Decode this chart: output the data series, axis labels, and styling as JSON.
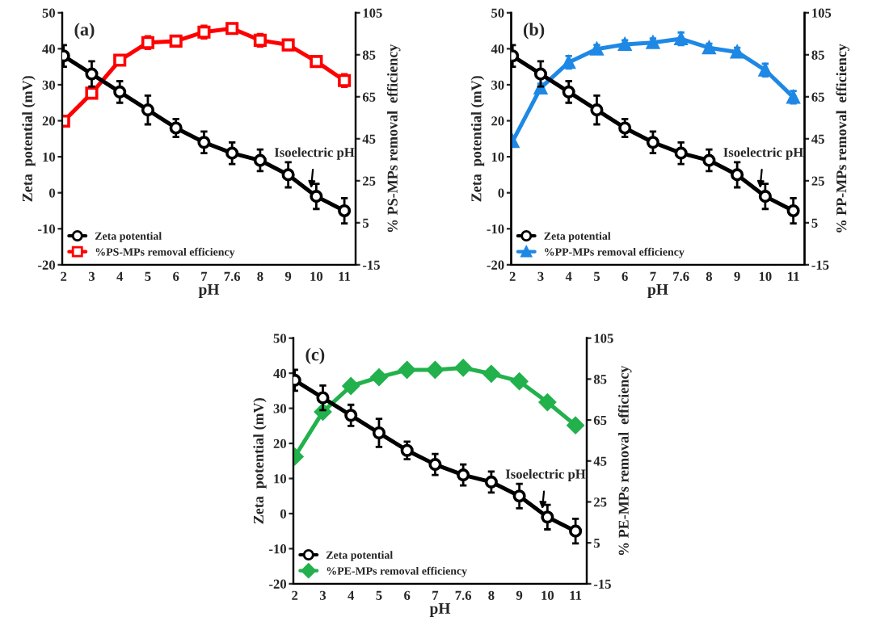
{
  "chart_data": [
    {
      "type": "line",
      "categories": [
        "2",
        "3",
        "4",
        "5",
        "6",
        "7",
        "7.6",
        "8",
        "9",
        "10",
        "11"
      ],
      "xlabel": "pH",
      "ylabel": "Zeta  potential (mV)",
      "y2label": "% PS-MPs removal  efficiency",
      "ylim": [
        -20,
        50
      ],
      "yticks": [
        -20,
        -10,
        0,
        10,
        20,
        30,
        40,
        50
      ],
      "y2lim": [
        -15,
        105
      ],
      "y2ticks": [
        -15,
        5,
        25,
        45,
        65,
        85,
        105
      ],
      "legend": "bottom left",
      "grid": false,
      "annotations": [
        "(a)",
        {
          "text": "Isoelectric pH",
          "x": "10",
          "y": 0
        }
      ],
      "series": [
        {
          "name": "Zeta potential",
          "color": "#000000",
          "marker": "circle",
          "values": [
            38,
            33,
            28,
            23,
            18,
            14,
            11,
            9,
            5,
            -1,
            -5
          ],
          "errors": [
            3,
            3.5,
            3,
            4,
            2.5,
            3,
            3,
            3,
            3.5,
            3.5,
            3.5
          ]
        },
        {
          "name": "%PS-MPs removal efficiency",
          "color": "#ff0000",
          "marker": "square",
          "axis": "y2",
          "values": [
            53.4,
            66.7,
            82.4,
            90.8,
            91.5,
            95.8,
            97.5,
            91.9,
            89.7,
            81.8,
            72.7
          ],
          "errors": [
            2,
            2,
            2,
            3,
            2,
            3,
            2,
            3,
            2,
            2,
            3
          ]
        }
      ]
    },
    {
      "type": "line",
      "categories": [
        "2",
        "3",
        "4",
        "5",
        "6",
        "7",
        "7.6",
        "8",
        "9",
        "10",
        "11"
      ],
      "xlabel": "pH",
      "ylabel": "Zeta  potential (mV)",
      "y2label": "% PP-MPs removal  efficiency",
      "ylim": [
        -20,
        50
      ],
      "yticks": [
        -20,
        -10,
        0,
        10,
        20,
        30,
        40,
        50
      ],
      "y2lim": [
        -15,
        105
      ],
      "y2ticks": [
        -15,
        5,
        25,
        45,
        65,
        85,
        105
      ],
      "legend": "bottom left",
      "grid": false,
      "annotations": [
        "(b)",
        {
          "text": "Isoelectric pH",
          "x": "10",
          "y": 0
        }
      ],
      "series": [
        {
          "name": "Zeta potential",
          "color": "#000000",
          "marker": "circle",
          "values": [
            38,
            33,
            28,
            23,
            18,
            14,
            11,
            9,
            5,
            -1,
            -5
          ],
          "errors": [
            3,
            3.5,
            3,
            4,
            2.5,
            3,
            3,
            3,
            3.5,
            3.5,
            3.5
          ]
        },
        {
          "name": "%PP-MPs removal efficiency",
          "color": "#1e88e5",
          "marker": "triangle",
          "axis": "y2",
          "values": [
            43.7,
            69.2,
            81.4,
            87.7,
            89.9,
            90.8,
            92.6,
            88.3,
            86.3,
            77.7,
            64.8
          ],
          "errors": [
            2,
            2,
            3,
            2,
            2,
            2,
            3,
            2,
            2,
            3,
            3
          ]
        }
      ]
    },
    {
      "type": "line",
      "categories": [
        "2",
        "3",
        "4",
        "5",
        "6",
        "7",
        "7.6",
        "8",
        "9",
        "10",
        "11"
      ],
      "xlabel": "pH",
      "ylabel": "Zeta  potential (mV)",
      "y2label": "% PE-MPs removal  efficiency",
      "ylim": [
        -20,
        50
      ],
      "yticks": [
        -20,
        -10,
        0,
        10,
        20,
        30,
        40,
        50
      ],
      "y2lim": [
        -15,
        105
      ],
      "y2ticks": [
        -15,
        5,
        25,
        45,
        65,
        85,
        105
      ],
      "legend": "bottom left",
      "grid": false,
      "annotations": [
        "(c)",
        {
          "text": "Isoelectric pH",
          "x": "10",
          "y": 0
        }
      ],
      "series": [
        {
          "name": "Zeta potential",
          "color": "#000000",
          "marker": "circle",
          "values": [
            38,
            33,
            28,
            23,
            18,
            14,
            11,
            9,
            5,
            -1,
            -5
          ],
          "errors": [
            3,
            3.5,
            3,
            4,
            2.5,
            3,
            3,
            3,
            3.5,
            3.5,
            3.5
          ]
        },
        {
          "name": "%PE-MPs removal efficiency",
          "color": "#22b14c",
          "marker": "diamond",
          "axis": "y2",
          "values": [
            47.1,
            69.0,
            81.6,
            85.9,
            89.5,
            89.5,
            90.5,
            87.6,
            83.9,
            73.7,
            62.4
          ],
          "errors": [
            2,
            2,
            2,
            2,
            2,
            2,
            2,
            2,
            2,
            2,
            2
          ]
        }
      ]
    }
  ]
}
